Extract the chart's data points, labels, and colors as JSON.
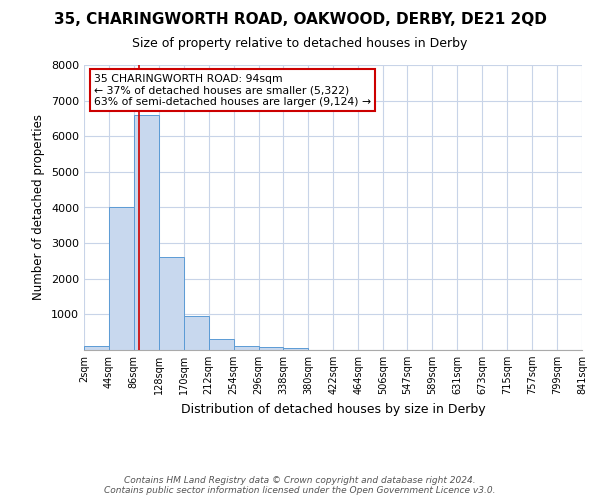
{
  "title": "35, CHARINGWORTH ROAD, OAKWOOD, DERBY, DE21 2QD",
  "subtitle": "Size of property relative to detached houses in Derby",
  "xlabel": "Distribution of detached houses by size in Derby",
  "ylabel": "Number of detached properties",
  "bar_heights": [
    100,
    4000,
    6600,
    2600,
    950,
    300,
    120,
    80,
    50,
    10,
    0,
    0,
    0,
    0,
    0,
    0,
    0,
    0,
    0,
    0
  ],
  "bin_edges": [
    2,
    44,
    86,
    128,
    170,
    212,
    254,
    296,
    338,
    380,
    422,
    464,
    506,
    547,
    589,
    631,
    673,
    715,
    757,
    799,
    841
  ],
  "bar_color": "#c8d8ee",
  "bar_edgecolor": "#5b9bd5",
  "redline_x": 94,
  "annotation_text": "35 CHARINGWORTH ROAD: 94sqm\n← 37% of detached houses are smaller (5,322)\n63% of semi-detached houses are larger (9,124) →",
  "annotation_box_color": "white",
  "annotation_box_edgecolor": "#cc0000",
  "redline_color": "#cc0000",
  "ylim": [
    0,
    8000
  ],
  "yticks": [
    0,
    1000,
    2000,
    3000,
    4000,
    5000,
    6000,
    7000,
    8000
  ],
  "xtick_labels": [
    "2sqm",
    "44sqm",
    "86sqm",
    "128sqm",
    "170sqm",
    "212sqm",
    "254sqm",
    "296sqm",
    "338sqm",
    "380sqm",
    "422sqm",
    "464sqm",
    "506sqm",
    "547sqm",
    "589sqm",
    "631sqm",
    "673sqm",
    "715sqm",
    "757sqm",
    "799sqm",
    "841sqm"
  ],
  "footer": "Contains HM Land Registry data © Crown copyright and database right 2024.\nContains public sector information licensed under the Open Government Licence v3.0.",
  "bg_color": "#ffffff",
  "grid_color": "#c8d4e8"
}
